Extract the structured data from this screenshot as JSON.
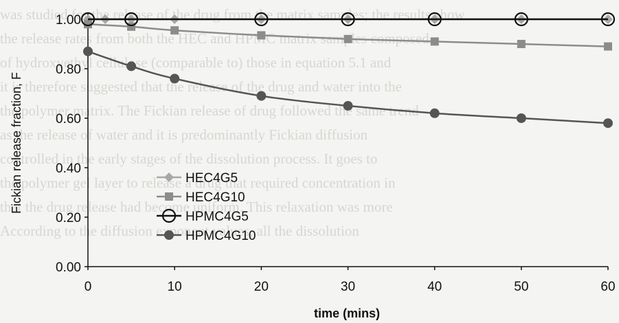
{
  "background_text": [
    "was studied for the release of the drug from the matrix samples; the results show",
    "the release rates from both the HEC and HPMC matrix samples composed",
    "of hydroxyethyl cellulose (comparable to) those in equation 5.1 and",
    "it is therefore suggested that the release of the drug and water into the",
    "the polymer matrix. The Fickian release of drug followed the same trend",
    "as the release of water and it is predominantly Fickian diffusion",
    "controlled in the early stages of the dissolution process. It goes to",
    "the polymer gel layer to release a drug that required concentration in",
    "that the drug release had become uniform. This relaxation was more",
    "According to the diffusion exponent values, all the dissolution"
  ],
  "chart_data": {
    "type": "line",
    "title": "",
    "xlabel": "time (mins)",
    "ylabel": "Fickian release fraction, F",
    "xlim": [
      0,
      60
    ],
    "ylim": [
      0,
      1.0
    ],
    "xticks": [
      "0",
      "10",
      "20",
      "30",
      "40",
      "50",
      "60"
    ],
    "yticks": [
      "0.00",
      "0.20",
      "0.40",
      "0.60",
      "0.80",
      "1.00"
    ],
    "grid": false,
    "legend_position": "left-center",
    "series": [
      {
        "name": "HEC4G5",
        "marker": "diamond",
        "color": "#a8a8a8",
        "x": [
          0,
          2,
          5,
          10,
          20,
          30,
          40,
          50,
          60
        ],
        "y": [
          1.0,
          1.0,
          1.0,
          1.0,
          1.0,
          1.0,
          1.0,
          1.0,
          1.0
        ]
      },
      {
        "name": "HEC4G10",
        "marker": "square",
        "color": "#8c8c8c",
        "x": [
          0,
          5,
          10,
          20,
          30,
          40,
          50,
          60
        ],
        "y": [
          0.98,
          0.97,
          0.955,
          0.935,
          0.92,
          0.91,
          0.9,
          0.89
        ]
      },
      {
        "name": "HPMC4G5",
        "marker": "circle-open",
        "color": "#111111",
        "x": [
          0,
          5,
          20,
          30,
          40,
          50,
          60
        ],
        "y": [
          1.0,
          1.0,
          1.0,
          1.0,
          1.0,
          1.0,
          1.0
        ]
      },
      {
        "name": "HPMC4G10",
        "marker": "circle",
        "color": "#555555",
        "x": [
          0,
          5,
          10,
          20,
          30,
          40,
          50,
          60
        ],
        "y": [
          0.87,
          0.81,
          0.76,
          0.69,
          0.65,
          0.62,
          0.6,
          0.58
        ]
      }
    ]
  }
}
